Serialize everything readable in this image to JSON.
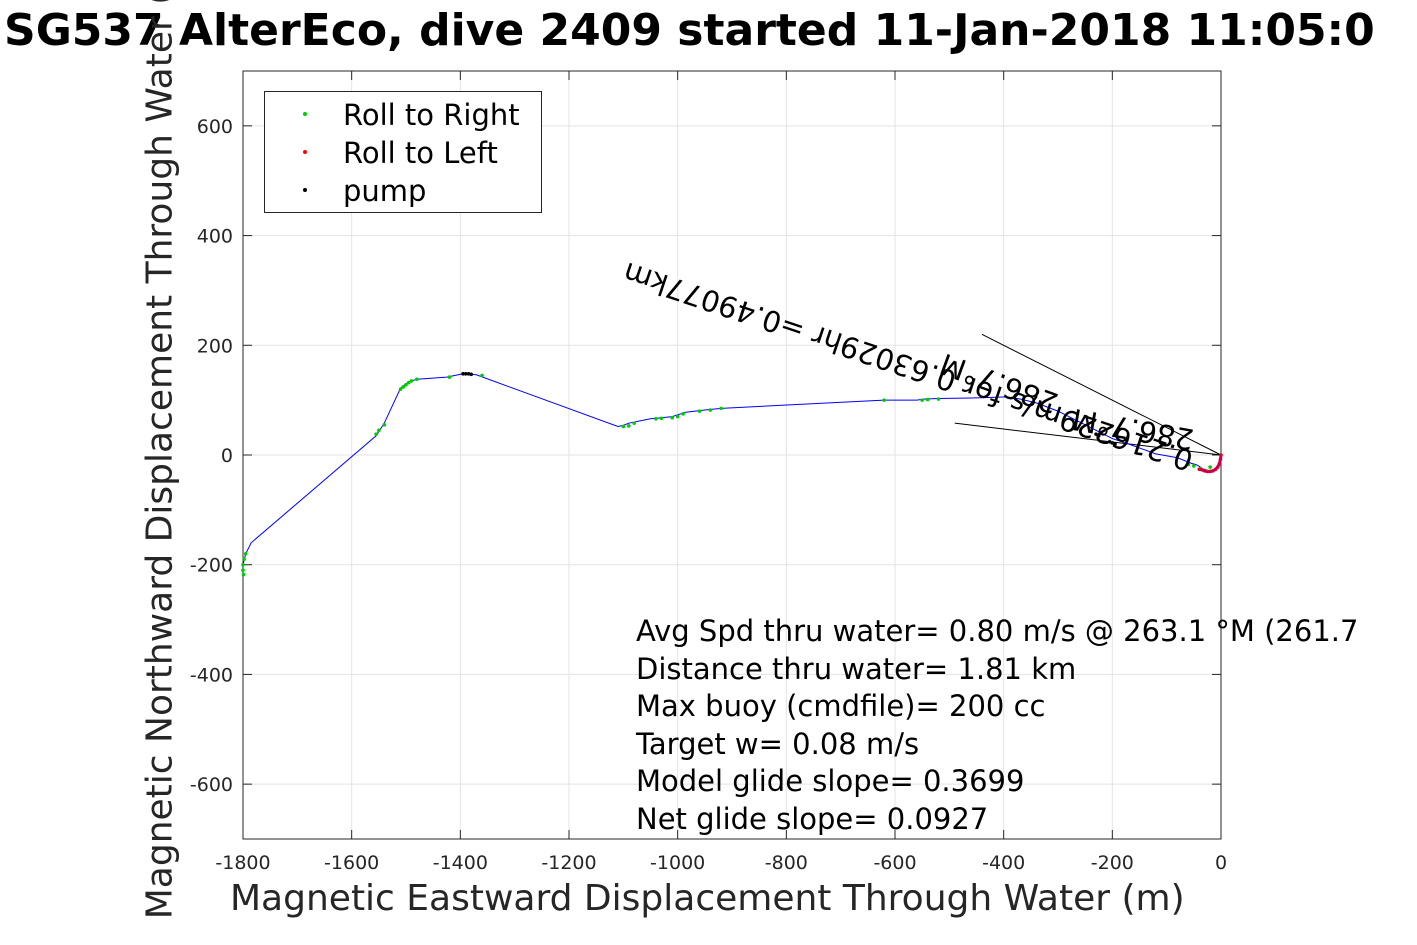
{
  "title": "SG537 AlterEco, dive 2409 started 11-Jan-2018 11:05:0",
  "xlabel": "Magnetic Eastward Displacement Through Water (m)",
  "ylabel": "Magnetic Northward Displacement Through Water (",
  "legend": [
    {
      "label": "Roll to Right",
      "color": "#00cc00"
    },
    {
      "label": "Roll to Left",
      "color": "#ff0000"
    },
    {
      "label": "pump",
      "color": "#000000"
    }
  ],
  "stats": [
    "Avg Spd thru water=  0.80 m/s @ 263.1 °M (261.7",
    "Distance thru water=  1.81 km",
    "Max buoy (cmdfile)= 200 cc",
    "Target w= 0.08 m/s",
    "Model glide slope= 0.3699",
    "Net glide slope= 0.0927"
  ],
  "rotated_labels": [
    "0.216229m/s for 0.63029hr =0.49077km",
    "286.7°M",
    "286.7°M"
  ],
  "chart_data": {
    "type": "line",
    "xlim": [
      -1800,
      0
    ],
    "ylim": [
      -700,
      700
    ],
    "x_ticks": [
      -1800,
      -1600,
      -1400,
      -1200,
      -1000,
      -800,
      -600,
      -400,
      -200,
      0
    ],
    "y_ticks": [
      -600,
      -400,
      -200,
      0,
      200,
      400,
      600
    ],
    "grid": true,
    "legend_placement": "top-left",
    "track_color": "#0000ff",
    "series": [
      {
        "name": "track",
        "x": [
          0,
          -2,
          -8,
          -15,
          -22,
          -30,
          -38,
          -45,
          -55,
          -80,
          -120,
          -170,
          -200,
          -230,
          -260,
          -300,
          -340,
          -370,
          -395,
          -420,
          -460,
          -520,
          -545,
          -560,
          -620,
          -920,
          -950,
          -985,
          -1010,
          -1030,
          -1050,
          -1090,
          -1100,
          -1110,
          -1370,
          -1385,
          -1395,
          -1425,
          -1480,
          -1490,
          -1500,
          -1510,
          -1540,
          -1555,
          -1785,
          -1795,
          -1800,
          -1800,
          -1798
        ],
        "y": [
          0,
          -10,
          -22,
          -28,
          -30,
          -28,
          -22,
          -18,
          -15,
          -5,
          2,
          20,
          30,
          45,
          60,
          80,
          95,
          102,
          106,
          105,
          104,
          103,
          102,
          100,
          100,
          85,
          82,
          78,
          70,
          68,
          66,
          58,
          54,
          52,
          146,
          148,
          148,
          142,
          138,
          135,
          130,
          122,
          58,
          35,
          -160,
          -180,
          -200,
          -215,
          -220
        ]
      },
      {
        "name": "Roll to Right",
        "x": [
          -20,
          -30,
          -38,
          -50,
          -60,
          -1090,
          -1100,
          -1080,
          -1040,
          -1030,
          -1010,
          -1000,
          -990,
          -960,
          -940,
          -920,
          -620,
          -550,
          -540,
          -520,
          -1360,
          -1420,
          -1480,
          -1490,
          -1495,
          -1500,
          -1505,
          -1510,
          -1540,
          -1550,
          -1555,
          -1795,
          -1798,
          -1800,
          -1800,
          -1799
        ],
        "y": [
          -22,
          -28,
          -25,
          -20,
          -17,
          53,
          52,
          58,
          66,
          67,
          68,
          70,
          75,
          80,
          82,
          85,
          100,
          100,
          101,
          102,
          145,
          142,
          138,
          135,
          132,
          128,
          124,
          120,
          55,
          45,
          38,
          -180,
          -190,
          -200,
          -210,
          -218
        ]
      },
      {
        "name": "Roll to Left",
        "x": [
          0,
          -1,
          -3,
          -6,
          -10,
          -15,
          -20,
          -25,
          -30,
          -35,
          -40
        ],
        "y": [
          0,
          -8,
          -16,
          -22,
          -26,
          -29,
          -30,
          -30,
          -29,
          -27,
          -26
        ]
      },
      {
        "name": "pump",
        "x": [
          -195,
          -200,
          -205,
          -225,
          -230,
          -1380,
          -1385,
          -1390,
          -1395
        ],
        "y": [
          20,
          22,
          24,
          35,
          38,
          147,
          148,
          148,
          148
        ]
      }
    ],
    "current_lines": [
      {
        "x": [
          0,
          -440
        ],
        "y": [
          0,
          220
        ]
      },
      {
        "x": [
          0,
          -490
        ],
        "y": [
          0,
          58
        ]
      }
    ]
  }
}
